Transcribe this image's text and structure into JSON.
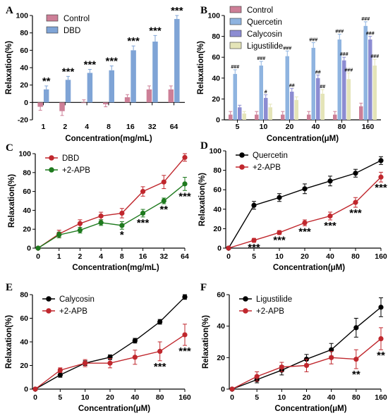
{
  "chart_data": [
    {
      "panel": "A",
      "type": "bar",
      "xlabel": "Concentration(mg/mL)",
      "ylabel": "Relaxation(%)",
      "ylim": [
        -20,
        100
      ],
      "yticks": [
        -20,
        0,
        20,
        40,
        60,
        80,
        100
      ],
      "categories": [
        "1",
        "2",
        "4",
        "8",
        "16",
        "32",
        "64"
      ],
      "series": [
        {
          "name": "Control",
          "color": "#cd7f97",
          "values": [
            -5,
            -10,
            0,
            -2,
            6,
            15,
            15
          ],
          "errors": [
            4,
            5,
            3,
            3,
            3,
            4,
            4
          ]
        },
        {
          "name": "DBD",
          "color": "#7fa4d6",
          "values": [
            15,
            26,
            34,
            37,
            60,
            70,
            96
          ],
          "errors": [
            4,
            4,
            4,
            5,
            5,
            7,
            4
          ]
        }
      ],
      "annotations": [
        "**",
        "***",
        "***",
        "***",
        "***",
        "***",
        "***"
      ],
      "legend": "top-left"
    },
    {
      "panel": "B",
      "type": "bar",
      "xlabel": "Concentration(μM)",
      "ylabel": "Relaxation(%)",
      "ylim": [
        0,
        100
      ],
      "yticks": [
        0,
        20,
        40,
        60,
        80,
        100
      ],
      "categories": [
        "5",
        "10",
        "20",
        "40",
        "80",
        "160"
      ],
      "series": [
        {
          "name": "Control",
          "color": "#cd7f97",
          "values": [
            5,
            5,
            5,
            5,
            5,
            13
          ],
          "errors": [
            3,
            3,
            3,
            3,
            3,
            3
          ]
        },
        {
          "name": "Quercetin",
          "color": "#8fb4e0",
          "values": [
            44,
            52,
            61,
            69,
            77,
            90
          ],
          "errors": [
            4,
            4,
            5,
            5,
            5,
            4
          ]
        },
        {
          "name": "Calycosin",
          "color": "#8c8cd2",
          "values": [
            12,
            21,
            27,
            40,
            57,
            77
          ],
          "errors": [
            2,
            3,
            3,
            3,
            3,
            3
          ]
        },
        {
          "name": "Ligustilide",
          "color": "#e4e4b8",
          "values": [
            6,
            12,
            19,
            25,
            39,
            52
          ],
          "errors": [
            2,
            3,
            3,
            4,
            6,
            6
          ]
        }
      ],
      "annotations": [
        {
          "series": "Quercetin",
          "labels": [
            "###",
            "###",
            "###",
            "###",
            "###",
            "###"
          ]
        },
        {
          "series": "Calycosin",
          "labels": [
            "",
            "#",
            "##",
            "##",
            "###",
            "###"
          ]
        },
        {
          "series": "Ligustilide",
          "labels": [
            "",
            "",
            "",
            "##",
            "###",
            "###"
          ]
        }
      ],
      "legend": "top-left"
    },
    {
      "panel": "C",
      "type": "line",
      "xlabel": "Concentration(mg/mL)",
      "ylabel": "Relaxation(%)",
      "ylim": [
        0,
        100
      ],
      "yticks": [
        0,
        20,
        40,
        60,
        80,
        100
      ],
      "x": [
        "0",
        "1",
        "2",
        "4",
        "8",
        "16",
        "32",
        "64"
      ],
      "series": [
        {
          "name": "DBD",
          "color": "#c0272d",
          "values": [
            0,
            15,
            26,
            34,
            37,
            60,
            70,
            96
          ],
          "errors": [
            0,
            4,
            4,
            4,
            5,
            5,
            7,
            4
          ]
        },
        {
          "name": "+2-APB",
          "color": "#1e7a1e",
          "values": [
            0,
            14,
            19,
            27,
            24,
            37,
            50,
            68
          ],
          "errors": [
            0,
            3,
            3,
            3,
            4,
            4,
            3,
            7
          ]
        }
      ],
      "annotations": [
        {
          "index": 4,
          "label": "*"
        },
        {
          "index": 5,
          "label": "***"
        },
        {
          "index": 6,
          "label": "**"
        },
        {
          "index": 7,
          "label": "***"
        }
      ],
      "legend": "top-left"
    },
    {
      "panel": "D",
      "type": "line",
      "xlabel": "Concentration(μM)",
      "ylabel": "Relaxation(%)",
      "ylim": [
        0,
        100
      ],
      "yticks": [
        0,
        20,
        40,
        60,
        80,
        100
      ],
      "x": [
        "0",
        "5",
        "10",
        "20",
        "40",
        "80",
        "160"
      ],
      "series": [
        {
          "name": "Quercetin",
          "color": "#000000",
          "values": [
            0,
            44,
            52,
            61,
            69,
            77,
            90
          ],
          "errors": [
            0,
            4,
            4,
            5,
            5,
            4,
            4
          ]
        },
        {
          "name": "+2-APB",
          "color": "#c0272d",
          "values": [
            0,
            8,
            16,
            26,
            33,
            47,
            73
          ],
          "errors": [
            0,
            2,
            2,
            3,
            4,
            5,
            5
          ]
        }
      ],
      "annotations": [
        {
          "index": 1,
          "label": "***"
        },
        {
          "index": 2,
          "label": "***"
        },
        {
          "index": 3,
          "label": "***"
        },
        {
          "index": 4,
          "label": "***"
        },
        {
          "index": 5,
          "label": "***"
        },
        {
          "index": 6,
          "label": "***"
        }
      ],
      "legend": "top-left"
    },
    {
      "panel": "E",
      "type": "line",
      "xlabel": "Concentration(μM)",
      "ylabel": "Relaxation(%)",
      "ylim": [
        0,
        80
      ],
      "yticks": [
        0,
        20,
        40,
        60,
        80
      ],
      "x": [
        "0",
        "5",
        "10",
        "20",
        "40",
        "80",
        "160"
      ],
      "series": [
        {
          "name": "Calycosin",
          "color": "#000000",
          "values": [
            0,
            12,
            22,
            27,
            41,
            57,
            78
          ],
          "errors": [
            0,
            2,
            2,
            2,
            2,
            2,
            2
          ]
        },
        {
          "name": "+2-APB",
          "color": "#c0272d",
          "values": [
            0,
            16,
            22,
            22,
            27,
            32,
            46
          ],
          "errors": [
            0,
            2,
            3,
            4,
            6,
            8,
            9
          ]
        }
      ],
      "annotations": [
        {
          "index": 5,
          "label": "***"
        },
        {
          "index": 6,
          "label": "***"
        }
      ],
      "legend": "top-left"
    },
    {
      "panel": "F",
      "type": "line",
      "xlabel": "Concentration(μM)",
      "ylabel": "Relaxation(%)",
      "ylim": [
        0,
        60
      ],
      "yticks": [
        0,
        20,
        40,
        60
      ],
      "x": [
        "0",
        "5",
        "10",
        "20",
        "40",
        "80",
        "160"
      ],
      "series": [
        {
          "name": "Ligustilide",
          "color": "#000000",
          "values": [
            0,
            6,
            12,
            19,
            25,
            39,
            52
          ],
          "errors": [
            0,
            2,
            3,
            3,
            4,
            6,
            6
          ]
        },
        {
          "name": "+2-APB",
          "color": "#c0272d",
          "values": [
            0,
            8,
            14,
            15,
            20,
            19,
            32
          ],
          "errors": [
            0,
            3,
            3,
            4,
            4,
            6,
            7
          ]
        }
      ],
      "annotations": [
        {
          "index": 5,
          "label": "**"
        },
        {
          "index": 6,
          "label": "**"
        }
      ],
      "legend": "top-left"
    }
  ]
}
